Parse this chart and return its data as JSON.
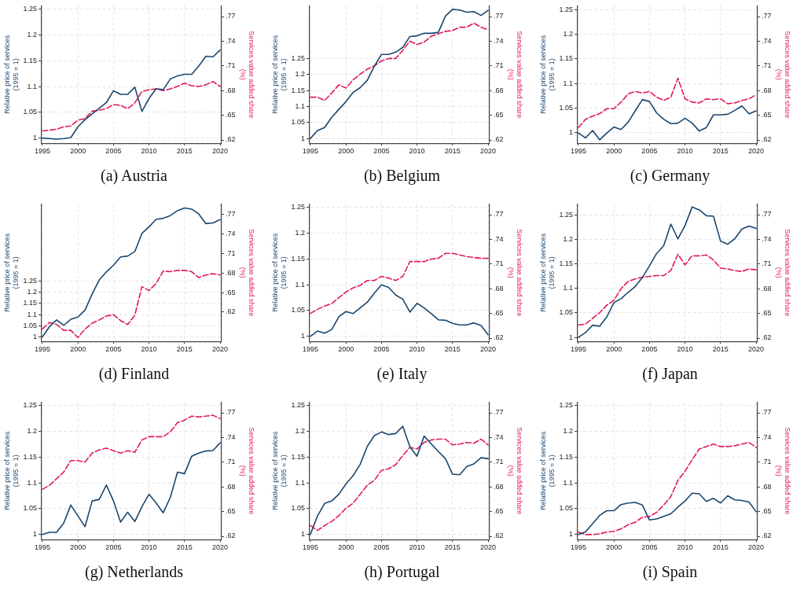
{
  "chart_data": [
    {
      "type": "line",
      "title": "(a) Austria",
      "ylabel": "Relative price of services\n(1995 = 1)",
      "y2label": "Services value added share\n(%)",
      "x": [
        1995,
        1996,
        1997,
        1998,
        1999,
        2000,
        2001,
        2002,
        2003,
        2004,
        2005,
        2006,
        2007,
        2008,
        2009,
        2010,
        2011,
        2012,
        2013,
        2014,
        2015,
        2016,
        2017,
        2018,
        2019,
        2020
      ],
      "xlim": [
        1994.8,
        2020.2
      ],
      "xticks": [
        1995,
        2000,
        2005,
        2010,
        2015,
        2020
      ],
      "ylim": [
        0.99,
        1.257
      ],
      "yticks": [
        1,
        1.05,
        1.1,
        1.15,
        1.2,
        1.25
      ],
      "y2lim": [
        0.616,
        0.783
      ],
      "y2ticks": [
        {
          "value": 0.62,
          "label": ".62"
        },
        {
          "value": 0.65,
          "label": ".65"
        },
        {
          "value": 0.68,
          "label": ".68"
        },
        {
          "value": 0.71,
          "label": ".71"
        },
        {
          "value": 0.74,
          "label": ".74"
        },
        {
          "value": 0.77,
          "label": ".77"
        }
      ],
      "grid": true,
      "marker": "none",
      "series": [
        {
          "color": "#1a476f",
          "line_style": "solid",
          "values": [
            1.0,
            0.999,
            0.998,
            0.999,
            1.001,
            1.022,
            1.036,
            1.047,
            1.058,
            1.069,
            1.092,
            1.085,
            1.085,
            1.099,
            1.052,
            1.077,
            1.096,
            1.094,
            1.115,
            1.121,
            1.124,
            1.124,
            1.14,
            1.159,
            1.158,
            1.171
          ]
        },
        {
          "color": "#e2185b",
          "line_style": "dashed",
          "axis": "y2",
          "values": [
            0.631,
            0.632,
            0.633,
            0.636,
            0.637,
            0.644,
            0.646,
            0.655,
            0.656,
            0.658,
            0.663,
            0.662,
            0.658,
            0.665,
            0.679,
            0.681,
            0.682,
            0.68,
            0.682,
            0.685,
            0.689,
            0.686,
            0.685,
            0.687,
            0.691,
            0.685
          ]
        }
      ]
    },
    {
      "type": "line",
      "title": "(b) Belgium",
      "ylabel": "Relative price of services\n(1995 = 1)",
      "y2label": "Services value added share\n(%)",
      "x": [
        1995,
        1996,
        1997,
        1998,
        1999,
        2000,
        2001,
        2002,
        2003,
        2004,
        2005,
        2006,
        2007,
        2008,
        2009,
        2010,
        2011,
        2012,
        2013,
        2014,
        2015,
        2016,
        2017,
        2018,
        2019,
        2020
      ],
      "xlim": [
        1994.8,
        2020.2
      ],
      "xticks": [
        1995,
        2000,
        2005,
        2010,
        2015,
        2020
      ],
      "ylim": [
        0.985,
        1.415
      ],
      "yticks": [
        1,
        1.05,
        1.1,
        1.15,
        1.2,
        1.25
      ],
      "y2lim": [
        0.616,
        0.783
      ],
      "y2ticks": [
        {
          "value": 0.62,
          "label": ".62"
        },
        {
          "value": 0.65,
          "label": ".65"
        },
        {
          "value": 0.68,
          "label": ".68"
        },
        {
          "value": 0.71,
          "label": ".71"
        },
        {
          "value": 0.74,
          "label": ".74"
        },
        {
          "value": 0.77,
          "label": ".77"
        }
      ],
      "grid": true,
      "marker": "none",
      "series": [
        {
          "color": "#1a476f",
          "line_style": "solid",
          "values": [
            1.0,
            1.025,
            1.034,
            1.066,
            1.091,
            1.115,
            1.144,
            1.159,
            1.182,
            1.226,
            1.263,
            1.263,
            1.27,
            1.285,
            1.319,
            1.321,
            1.329,
            1.329,
            1.332,
            1.383,
            1.404,
            1.402,
            1.395,
            1.397,
            1.385,
            1.401
          ]
        },
        {
          "color": "#e2185b",
          "line_style": "dashed",
          "axis": "y2",
          "values": [
            0.672,
            0.672,
            0.668,
            0.677,
            0.687,
            0.683,
            0.693,
            0.7,
            0.706,
            0.71,
            0.716,
            0.719,
            0.719,
            0.729,
            0.74,
            0.736,
            0.739,
            0.746,
            0.749,
            0.752,
            0.753,
            0.757,
            0.757,
            0.762,
            0.757,
            0.754
          ]
        }
      ]
    },
    {
      "type": "line",
      "title": "(c) Germany",
      "ylabel": "Relative price of services\n(1995 = 1)",
      "y2label": "Services value added share\n(%)",
      "x": [
        1995,
        1996,
        1997,
        1998,
        1999,
        2000,
        2001,
        2002,
        2003,
        2004,
        2005,
        2006,
        2007,
        2008,
        2009,
        2010,
        2011,
        2012,
        2013,
        2014,
        2015,
        2016,
        2017,
        2018,
        2019,
        2020
      ],
      "xlim": [
        1994.8,
        2020.2
      ],
      "xticks": [
        1995,
        2000,
        2005,
        2010,
        2015,
        2020
      ],
      "ylim": [
        0.978,
        1.258
      ],
      "yticks": [
        1,
        1.05,
        1.1,
        1.15,
        1.2,
        1.25
      ],
      "y2lim": [
        0.616,
        0.783
      ],
      "y2ticks": [
        {
          "value": 0.62,
          "label": ".62"
        },
        {
          "value": 0.65,
          "label": ".65"
        },
        {
          "value": 0.68,
          "label": ".68"
        },
        {
          "value": 0.71,
          "label": ".71"
        },
        {
          "value": 0.74,
          "label": ".74"
        },
        {
          "value": 0.77,
          "label": ".77"
        }
      ],
      "grid": true,
      "marker": "none",
      "series": [
        {
          "color": "#1a476f",
          "line_style": "solid",
          "values": [
            0.999,
            0.989,
            1.004,
            0.985,
            0.999,
            1.011,
            1.006,
            1.021,
            1.044,
            1.067,
            1.063,
            1.04,
            1.027,
            1.018,
            1.019,
            1.029,
            1.019,
            1.003,
            1.01,
            1.036,
            1.036,
            1.037,
            1.045,
            1.054,
            1.038,
            1.044
          ]
        },
        {
          "color": "#e2185b",
          "line_style": "dashed",
          "axis": "y2",
          "values": [
            0.635,
            0.645,
            0.649,
            0.652,
            0.658,
            0.658,
            0.666,
            0.676,
            0.679,
            0.677,
            0.679,
            0.672,
            0.668,
            0.672,
            0.695,
            0.67,
            0.666,
            0.665,
            0.67,
            0.669,
            0.67,
            0.664,
            0.665,
            0.668,
            0.67,
            0.675
          ]
        }
      ]
    },
    {
      "type": "line",
      "title": "(d) Finland",
      "ylabel": "Relative price of services\n(1995 = 1)",
      "y2label": "Services value added share\n(%)",
      "x": [
        1995,
        1996,
        1997,
        1998,
        1999,
        2000,
        2001,
        2002,
        2003,
        2004,
        2005,
        2006,
        2007,
        2008,
        2009,
        2010,
        2011,
        2012,
        2013,
        2014,
        2015,
        2016,
        2017,
        2018,
        2019,
        2020
      ],
      "xlim": [
        1994.8,
        2020.2
      ],
      "xticks": [
        1995,
        2000,
        2005,
        2010,
        2015,
        2020
      ],
      "ylim": [
        0.98,
        1.595
      ],
      "yticks": [
        1,
        1.05,
        1.1,
        1.15,
        1.2,
        1.25
      ],
      "y2lim": [
        0.575,
        0.786
      ],
      "y2ticks": [
        {
          "value": 0.62,
          "label": ".62"
        },
        {
          "value": 0.65,
          "label": ".65"
        },
        {
          "value": 0.68,
          "label": ".68"
        },
        {
          "value": 0.71,
          "label": ".71"
        },
        {
          "value": 0.74,
          "label": ".74"
        },
        {
          "value": 0.77,
          "label": ".77"
        }
      ],
      "grid": true,
      "marker": "none",
      "series": [
        {
          "color": "#1a476f",
          "line_style": "solid",
          "values": [
            1.0,
            1.046,
            1.076,
            1.052,
            1.079,
            1.089,
            1.12,
            1.192,
            1.255,
            1.291,
            1.321,
            1.358,
            1.362,
            1.382,
            1.463,
            1.493,
            1.526,
            1.531,
            1.543,
            1.565,
            1.577,
            1.572,
            1.55,
            1.507,
            1.51,
            1.525
          ]
        },
        {
          "color": "#e2185b",
          "line_style": "dashed",
          "axis": "y2",
          "values": [
            0.594,
            0.604,
            0.601,
            0.592,
            0.592,
            0.581,
            0.594,
            0.603,
            0.608,
            0.614,
            0.616,
            0.607,
            0.601,
            0.615,
            0.659,
            0.653,
            0.664,
            0.683,
            0.682,
            0.684,
            0.684,
            0.682,
            0.673,
            0.677,
            0.679,
            0.677
          ]
        }
      ]
    },
    {
      "type": "line",
      "title": "(e) Italy",
      "ylabel": "Relative price of services\n(1995 = 1)",
      "y2label": "Services value added share\n(%)",
      "x": [
        1995,
        1996,
        1997,
        1998,
        1999,
        2000,
        2001,
        2002,
        2003,
        2004,
        2005,
        2006,
        2007,
        2008,
        2009,
        2010,
        2011,
        2012,
        2013,
        2014,
        2015,
        2016,
        2017,
        2018,
        2019,
        2020
      ],
      "xlim": [
        1994.8,
        2020.2
      ],
      "xticks": [
        1995,
        2000,
        2005,
        2010,
        2015,
        2020
      ],
      "ylim": [
        0.99,
        1.257
      ],
      "yticks": [
        1,
        1.05,
        1.1,
        1.15,
        1.2,
        1.25
      ],
      "y2lim": [
        0.616,
        0.783
      ],
      "y2ticks": [
        {
          "value": 0.62,
          "label": ".62"
        },
        {
          "value": 0.65,
          "label": ".65"
        },
        {
          "value": 0.68,
          "label": ".68"
        },
        {
          "value": 0.71,
          "label": ".71"
        },
        {
          "value": 0.74,
          "label": ".74"
        },
        {
          "value": 0.77,
          "label": ".77"
        }
      ],
      "grid": true,
      "marker": "none",
      "series": [
        {
          "color": "#1a476f",
          "line_style": "solid",
          "values": [
            1.0,
            1.01,
            1.006,
            1.013,
            1.038,
            1.048,
            1.044,
            1.055,
            1.066,
            1.084,
            1.1,
            1.095,
            1.08,
            1.072,
            1.047,
            1.064,
            1.055,
            1.044,
            1.032,
            1.031,
            1.025,
            1.022,
            1.022,
            1.026,
            1.021,
            1.003
          ]
        },
        {
          "color": "#e2185b",
          "line_style": "dashed",
          "axis": "y2",
          "values": [
            0.65,
            0.655,
            0.659,
            0.662,
            0.669,
            0.676,
            0.681,
            0.684,
            0.69,
            0.69,
            0.695,
            0.693,
            0.69,
            0.695,
            0.713,
            0.713,
            0.713,
            0.716,
            0.717,
            0.723,
            0.723,
            0.721,
            0.719,
            0.718,
            0.717,
            0.717
          ]
        }
      ]
    },
    {
      "type": "line",
      "title": "(f) Japan",
      "ylabel": "Relative price of services\n(1995 = 1)",
      "y2label": "Services value added share\n(%)",
      "x": [
        1995,
        1996,
        1997,
        1998,
        1999,
        2000,
        2001,
        2002,
        2003,
        2004,
        2005,
        2006,
        2007,
        2008,
        2009,
        2010,
        2011,
        2012,
        2013,
        2014,
        2015,
        2016,
        2017,
        2018,
        2019,
        2020
      ],
      "xlim": [
        1994.8,
        2020.2
      ],
      "xticks": [
        1995,
        2000,
        2005,
        2010,
        2015,
        2020
      ],
      "ylim": [
        0.992,
        1.272
      ],
      "yticks": [
        1,
        1.05,
        1.1,
        1.15,
        1.2,
        1.25
      ],
      "y2lim": [
        0.616,
        0.783
      ],
      "y2ticks": [
        {
          "value": 0.62,
          "label": ".62"
        },
        {
          "value": 0.65,
          "label": ".65"
        },
        {
          "value": 0.68,
          "label": ".68"
        },
        {
          "value": 0.71,
          "label": ".71"
        },
        {
          "value": 0.74,
          "label": ".74"
        },
        {
          "value": 0.77,
          "label": ".77"
        }
      ],
      "grid": true,
      "marker": "none",
      "series": [
        {
          "color": "#1a476f",
          "line_style": "solid",
          "values": [
            1.0,
            1.01,
            1.025,
            1.023,
            1.042,
            1.071,
            1.079,
            1.092,
            1.104,
            1.122,
            1.146,
            1.171,
            1.187,
            1.231,
            1.201,
            1.228,
            1.266,
            1.26,
            1.248,
            1.247,
            1.196,
            1.19,
            1.201,
            1.221,
            1.227,
            1.222
          ]
        },
        {
          "color": "#e2185b",
          "line_style": "dashed",
          "axis": "y2",
          "values": [
            0.636,
            0.637,
            0.644,
            0.651,
            0.66,
            0.666,
            0.68,
            0.689,
            0.692,
            0.694,
            0.695,
            0.696,
            0.696,
            0.702,
            0.722,
            0.709,
            0.72,
            0.72,
            0.721,
            0.715,
            0.705,
            0.704,
            0.702,
            0.701,
            0.704,
            0.703
          ]
        }
      ]
    },
    {
      "type": "line",
      "title": "(g) Netherlands",
      "ylabel": "Relative price of services\n(1995 = 1)",
      "y2label": "Services value added share\n(%)",
      "x": [
        1995,
        1996,
        1997,
        1998,
        1999,
        2000,
        2001,
        2002,
        2003,
        2004,
        2005,
        2006,
        2007,
        2008,
        2009,
        2010,
        2011,
        2012,
        2013,
        2014,
        2015,
        2016,
        2017,
        2018,
        2019,
        2020
      ],
      "xlim": [
        1994.8,
        2020.2
      ],
      "xticks": [
        1995,
        2000,
        2005,
        2010,
        2015,
        2020
      ],
      "ylim": [
        0.99,
        1.257
      ],
      "yticks": [
        1,
        1.05,
        1.1,
        1.15,
        1.2,
        1.25
      ],
      "y2lim": [
        0.616,
        0.783
      ],
      "y2ticks": [
        {
          "value": 0.62,
          "label": ".62"
        },
        {
          "value": 0.65,
          "label": ".65"
        },
        {
          "value": 0.68,
          "label": ".68"
        },
        {
          "value": 0.71,
          "label": ".71"
        },
        {
          "value": 0.74,
          "label": ".74"
        },
        {
          "value": 0.77,
          "label": ".77"
        }
      ],
      "grid": true,
      "marker": "none",
      "series": [
        {
          "color": "#1a476f",
          "line_style": "solid",
          "values": [
            1.0,
            1.004,
            1.004,
            1.022,
            1.057,
            1.036,
            1.015,
            1.065,
            1.068,
            1.096,
            1.065,
            1.024,
            1.043,
            1.025,
            1.054,
            1.078,
            1.061,
            1.042,
            1.072,
            1.121,
            1.118,
            1.152,
            1.158,
            1.162,
            1.163,
            1.178
          ]
        },
        {
          "color": "#e2185b",
          "line_style": "dashed",
          "axis": "y2",
          "values": [
            0.677,
            0.682,
            0.69,
            0.698,
            0.712,
            0.712,
            0.71,
            0.721,
            0.725,
            0.727,
            0.724,
            0.721,
            0.724,
            0.722,
            0.737,
            0.741,
            0.741,
            0.741,
            0.747,
            0.758,
            0.761,
            0.766,
            0.765,
            0.766,
            0.767,
            0.763
          ]
        }
      ]
    },
    {
      "type": "line",
      "title": "(h) Portugal",
      "ylabel": "Relative price of services\n(1995 = 1)",
      "y2label": "Services value added share\n(%)",
      "x": [
        1995,
        1996,
        1997,
        1998,
        1999,
        2000,
        2001,
        2002,
        2003,
        2004,
        2005,
        2006,
        2007,
        2008,
        2009,
        2010,
        2011,
        2012,
        2013,
        2014,
        2015,
        2016,
        2017,
        2018,
        2019,
        2020
      ],
      "xlim": [
        1994.8,
        2020.2
      ],
      "xticks": [
        1995,
        2000,
        2005,
        2010,
        2015,
        2020
      ],
      "ylim": [
        0.99,
        1.257
      ],
      "yticks": [
        1,
        1.05,
        1.1,
        1.15,
        1.2,
        1.25
      ],
      "y2lim": [
        0.616,
        0.783
      ],
      "y2ticks": [
        {
          "value": 0.62,
          "label": ".62"
        },
        {
          "value": 0.65,
          "label": ".65"
        },
        {
          "value": 0.68,
          "label": ".68"
        },
        {
          "value": 0.71,
          "label": ".71"
        },
        {
          "value": 0.74,
          "label": ".74"
        },
        {
          "value": 0.77,
          "label": ".77"
        }
      ],
      "grid": true,
      "marker": "none",
      "series": [
        {
          "color": "#1a476f",
          "line_style": "solid",
          "values": [
            1.0,
            1.036,
            1.06,
            1.065,
            1.078,
            1.098,
            1.114,
            1.136,
            1.171,
            1.192,
            1.199,
            1.194,
            1.196,
            1.21,
            1.17,
            1.152,
            1.191,
            1.176,
            1.161,
            1.147,
            1.117,
            1.116,
            1.132,
            1.137,
            1.149,
            1.147
          ]
        },
        {
          "color": "#e2185b",
          "line_style": "dashed",
          "axis": "y2",
          "values": [
            0.633,
            0.627,
            0.633,
            0.638,
            0.645,
            0.654,
            0.66,
            0.671,
            0.682,
            0.688,
            0.7,
            0.702,
            0.707,
            0.718,
            0.728,
            0.726,
            0.734,
            0.737,
            0.738,
            0.738,
            0.731,
            0.732,
            0.734,
            0.733,
            0.738,
            0.731
          ]
        }
      ]
    },
    {
      "type": "line",
      "title": "(i) Spain",
      "ylabel": "Relative price of services\n(1995 = 1)",
      "y2label": "Services value added share\n(%)",
      "x": [
        1995,
        1996,
        1997,
        1998,
        1999,
        2000,
        2001,
        2002,
        2003,
        2004,
        2005,
        2006,
        2007,
        2008,
        2009,
        2010,
        2011,
        2012,
        2013,
        2014,
        2015,
        2016,
        2017,
        2018,
        2019,
        2020
      ],
      "xlim": [
        1994.8,
        2020.2
      ],
      "xticks": [
        1995,
        2000,
        2005,
        2010,
        2015,
        2020
      ],
      "ylim": [
        0.99,
        1.257
      ],
      "yticks": [
        1,
        1.05,
        1.1,
        1.15,
        1.2,
        1.25
      ],
      "y2lim": [
        0.616,
        0.783
      ],
      "y2ticks": [
        {
          "value": 0.62,
          "label": ".62"
        },
        {
          "value": 0.65,
          "label": ".65"
        },
        {
          "value": 0.68,
          "label": ".68"
        },
        {
          "value": 0.71,
          "label": ".71"
        },
        {
          "value": 0.74,
          "label": ".74"
        },
        {
          "value": 0.77,
          "label": ".77"
        }
      ],
      "grid": true,
      "marker": "none",
      "series": [
        {
          "color": "#1a476f",
          "line_style": "solid",
          "values": [
            1.0,
            1.005,
            1.021,
            1.037,
            1.046,
            1.046,
            1.058,
            1.061,
            1.062,
            1.057,
            1.028,
            1.03,
            1.035,
            1.04,
            1.053,
            1.065,
            1.08,
            1.079,
            1.064,
            1.07,
            1.061,
            1.075,
            1.067,
            1.066,
            1.063,
            1.044
          ]
        },
        {
          "color": "#e2185b",
          "line_style": "dashed",
          "axis": "y2",
          "values": [
            0.625,
            0.622,
            0.622,
            0.623,
            0.625,
            0.626,
            0.629,
            0.634,
            0.637,
            0.643,
            0.644,
            0.649,
            0.658,
            0.668,
            0.688,
            0.699,
            0.713,
            0.726,
            0.729,
            0.732,
            0.729,
            0.729,
            0.73,
            0.732,
            0.734,
            0.728
          ]
        }
      ]
    }
  ]
}
